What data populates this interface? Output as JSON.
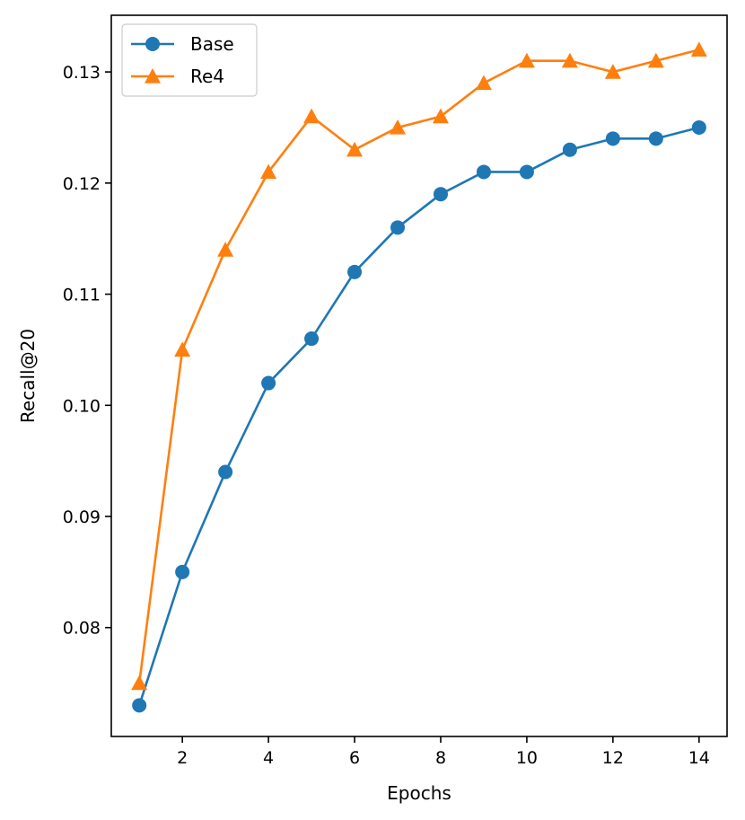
{
  "chart_data": {
    "type": "line",
    "title": "",
    "xlabel": "Epochs",
    "ylabel": "Recall@20",
    "xlim": [
      0.35,
      14.65
    ],
    "ylim": [
      0.0702,
      0.1351
    ],
    "xticks": [
      2,
      4,
      6,
      8,
      10,
      12,
      14
    ],
    "xtick_labels": [
      "2",
      "4",
      "6",
      "8",
      "10",
      "12",
      "14"
    ],
    "yticks": [
      0.08,
      0.09,
      0.1,
      0.11,
      0.12,
      0.13
    ],
    "ytick_labels": [
      "0.08",
      "0.09",
      "0.10",
      "0.11",
      "0.12",
      "0.13"
    ],
    "grid": false,
    "legend_position": "top-left",
    "x": [
      1,
      2,
      3,
      4,
      5,
      6,
      7,
      8,
      9,
      10,
      11,
      12,
      13,
      14
    ],
    "series": [
      {
        "name": "Base",
        "color": "#1f77b4",
        "marker": "circle",
        "values": [
          0.073,
          0.085,
          0.094,
          0.102,
          0.106,
          0.112,
          0.116,
          0.119,
          0.121,
          0.121,
          0.123,
          0.124,
          0.124,
          0.125
        ]
      },
      {
        "name": "Re4",
        "color": "#ff7f0e",
        "marker": "triangle",
        "values": [
          0.075,
          0.105,
          0.114,
          0.121,
          0.126,
          0.123,
          0.125,
          0.126,
          0.129,
          0.131,
          0.131,
          0.13,
          0.131,
          0.132
        ]
      }
    ]
  }
}
